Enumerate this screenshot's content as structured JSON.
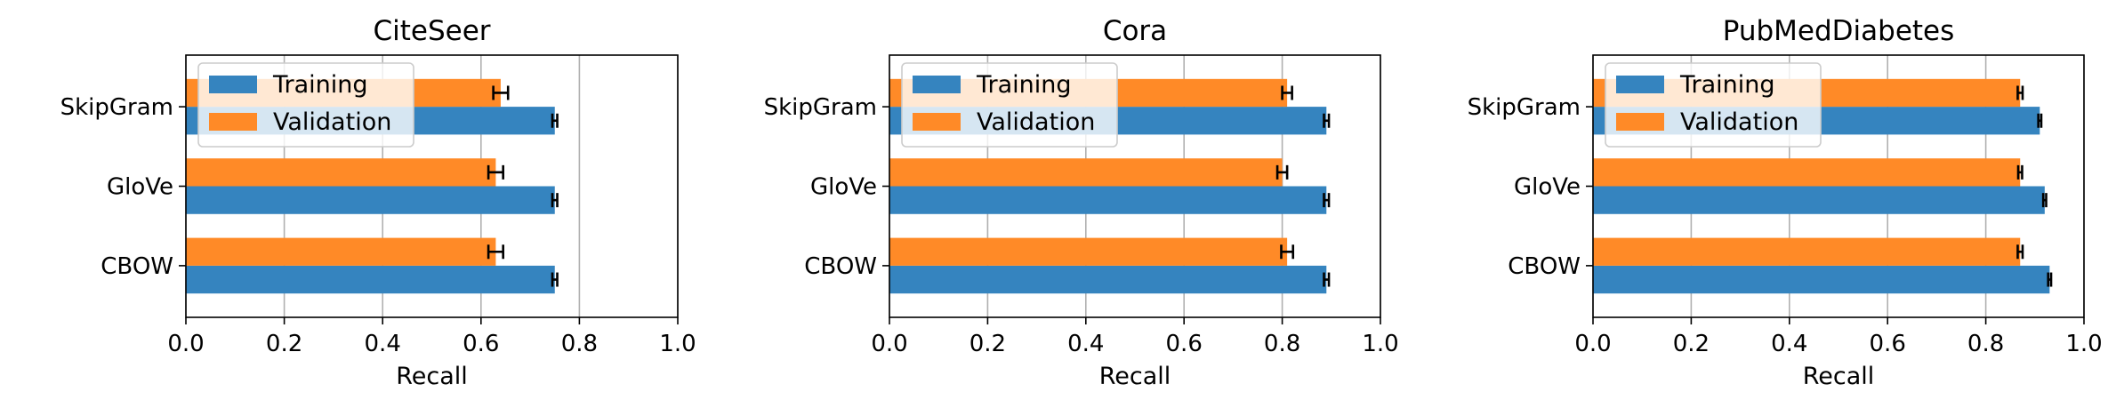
{
  "chart_data": [
    {
      "type": "bar",
      "orientation": "horizontal",
      "title": "CiteSeer",
      "xlabel": "Recall",
      "ylabel": "",
      "xlim": [
        0,
        1.0
      ],
      "xticks": [
        "0.0",
        "0.2",
        "0.4",
        "0.6",
        "0.8",
        "1.0"
      ],
      "grid": "x",
      "legend": "top-left",
      "categories": [
        "SkipGram",
        "GloVe",
        "CBOW"
      ],
      "series": [
        {
          "name": "Training",
          "color": "#3584bf",
          "values": [
            0.75,
            0.75,
            0.75
          ],
          "errors": [
            0.005,
            0.005,
            0.005
          ]
        },
        {
          "name": "Validation",
          "color": "#ff8a27",
          "values": [
            0.64,
            0.63,
            0.63
          ],
          "errors": [
            0.015,
            0.015,
            0.015
          ]
        }
      ]
    },
    {
      "type": "bar",
      "orientation": "horizontal",
      "title": "Cora",
      "xlabel": "Recall",
      "ylabel": "",
      "xlim": [
        0,
        1.0
      ],
      "xticks": [
        "0.0",
        "0.2",
        "0.4",
        "0.6",
        "0.8",
        "1.0"
      ],
      "grid": "x",
      "legend": "top-left",
      "categories": [
        "SkipGram",
        "GloVe",
        "CBOW"
      ],
      "series": [
        {
          "name": "Training",
          "color": "#3584bf",
          "values": [
            0.89,
            0.89,
            0.89
          ],
          "errors": [
            0.005,
            0.005,
            0.005
          ]
        },
        {
          "name": "Validation",
          "color": "#ff8a27",
          "values": [
            0.81,
            0.8,
            0.81
          ],
          "errors": [
            0.01,
            0.01,
            0.012
          ]
        }
      ]
    },
    {
      "type": "bar",
      "orientation": "horizontal",
      "title": "PubMedDiabetes",
      "xlabel": "Recall",
      "ylabel": "",
      "xlim": [
        0,
        1.0
      ],
      "xticks": [
        "0.0",
        "0.2",
        "0.4",
        "0.6",
        "0.8",
        "1.0"
      ],
      "grid": "x",
      "legend": "top-left",
      "categories": [
        "SkipGram",
        "GloVe",
        "CBOW"
      ],
      "series": [
        {
          "name": "Training",
          "color": "#3584bf",
          "values": [
            0.91,
            0.92,
            0.93
          ],
          "errors": [
            0.003,
            0.003,
            0.003
          ]
        },
        {
          "name": "Validation",
          "color": "#ff8a27",
          "values": [
            0.87,
            0.87,
            0.87
          ],
          "errors": [
            0.005,
            0.004,
            0.005
          ]
        }
      ]
    }
  ]
}
